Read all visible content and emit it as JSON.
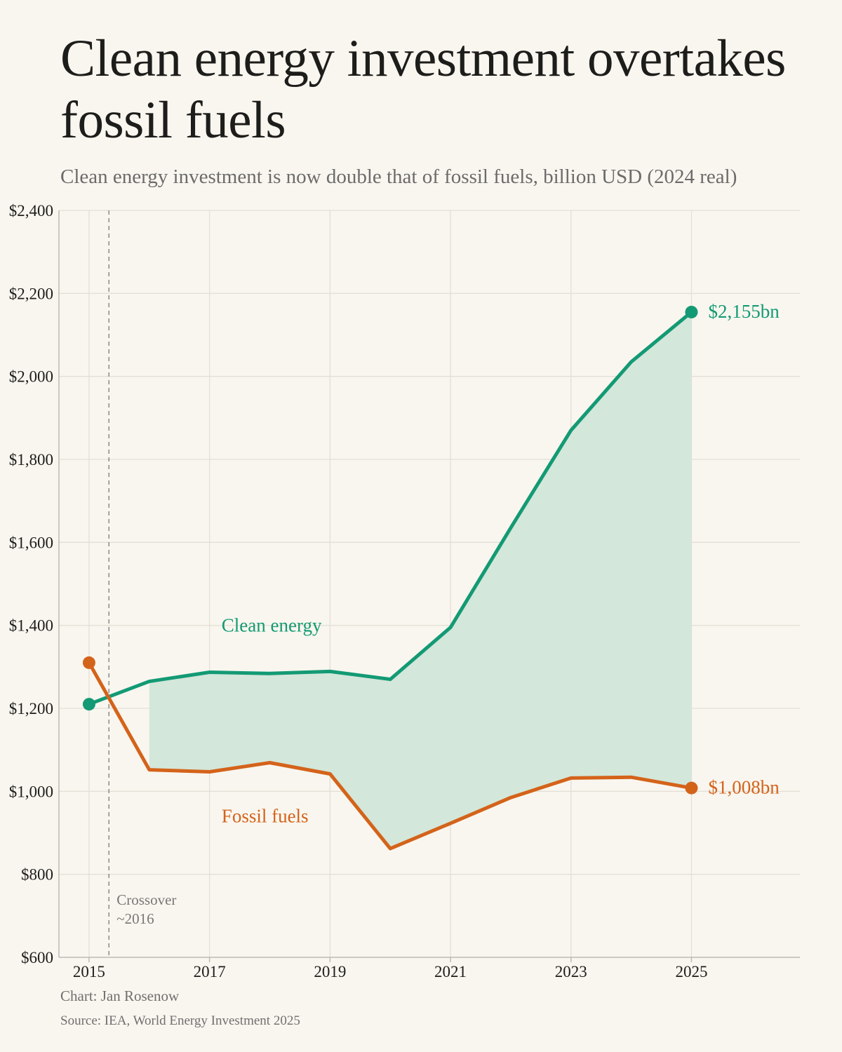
{
  "header": {
    "title": "Clean energy investment overtakes fossil fuels",
    "subtitle": "Clean energy investment is now double that of fossil fuels, billion USD (2024 real)"
  },
  "footer": {
    "credit": "Chart: Jan Rosenow",
    "source": "Source: IEA, World Energy Investment 2025"
  },
  "colors": {
    "clean": "#139a74",
    "fossil": "#d4631a",
    "fill": "#d3e7da",
    "grid": "#e3dfd7",
    "axis": "#bdbab3",
    "tick_text": "#1d1d1b",
    "annotation": "#777777"
  },
  "chart_data": {
    "type": "line",
    "x": [
      2015,
      2016,
      2017,
      2018,
      2019,
      2020,
      2021,
      2022,
      2023,
      2024,
      2025
    ],
    "series": [
      {
        "name": "Clean energy",
        "color": "#139a74",
        "values": [
          1210,
          1265,
          1287,
          1284,
          1289,
          1270,
          1395,
          1635,
          1870,
          2035,
          2155
        ]
      },
      {
        "name": "Fossil fuels",
        "color": "#d4631a",
        "values": [
          1310,
          1052,
          1047,
          1069,
          1042,
          862,
          923,
          985,
          1032,
          1034,
          1008
        ]
      }
    ],
    "end_labels": [
      "$2,155bn",
      "$1,008bn"
    ],
    "ylim": [
      600,
      2400
    ],
    "yticks": [
      600,
      800,
      1000,
      1200,
      1400,
      1600,
      1800,
      2000,
      2200,
      2400
    ],
    "ytick_labels": [
      "$600",
      "$800",
      "$1,000",
      "$1,200",
      "$1,400",
      "$1,600",
      "$1,800",
      "$2,000",
      "$2,200",
      "$2,400"
    ],
    "xlim": [
      2014.5,
      2026.8
    ],
    "xticks": [
      2015,
      2017,
      2019,
      2021,
      2023,
      2025
    ],
    "xtick_labels": [
      "2015",
      "2017",
      "2019",
      "2021",
      "2023",
      "2025"
    ],
    "vertical_gridlines": [
      2015,
      2017,
      2019,
      2021,
      2023,
      2025
    ],
    "grid": true,
    "shaded_gap": {
      "from": 2016,
      "to": 2025
    },
    "crossover": {
      "x": 2015.33,
      "label_line1": "Crossover",
      "label_line2": "~2016"
    },
    "series_labels": [
      {
        "text": "Clean energy",
        "x": 2017.2,
        "y": 1385
      },
      {
        "text": "Fossil fuels",
        "x": 2017.2,
        "y": 925
      }
    ]
  }
}
